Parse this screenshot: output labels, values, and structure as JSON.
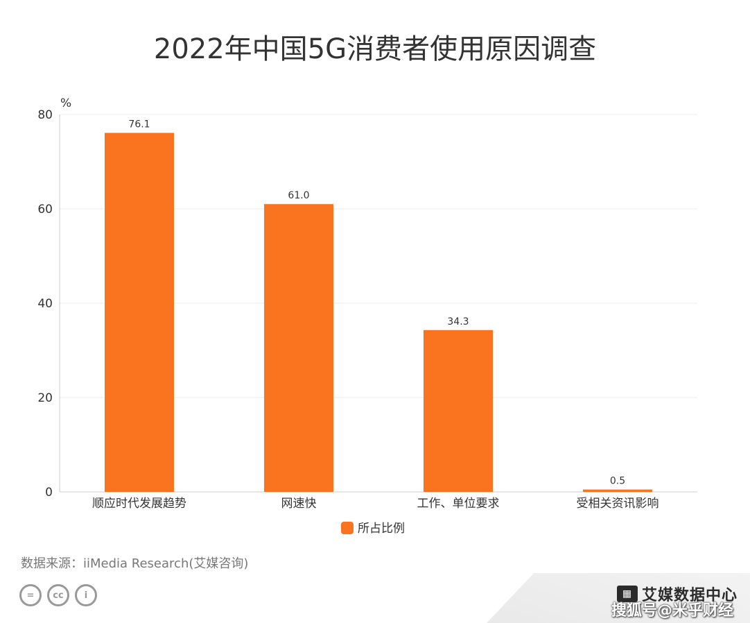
{
  "title": "2022年中国5G消费者使用原因调查",
  "source": "数据来源：iiMedia Research(艾媒咨询)",
  "brand": "艾媒数据中心",
  "watermark": "搜狐号@米乎财经",
  "cc_icons": [
    "equals-icon",
    "cc-icon",
    "person-icon"
  ],
  "colors": {
    "bar": "#FA731E",
    "grid": "#EBEBEB",
    "axis": "#CCCCCC",
    "text": "#333333"
  },
  "chart_data": {
    "type": "bar",
    "categories": [
      "顺应时代发展趋势",
      "网速快",
      "工作、单位要求",
      "受相关资讯影响"
    ],
    "series": [
      {
        "name": "所占比例",
        "values": [
          76.1,
          61.0,
          34.3,
          0.5
        ],
        "labels": [
          "76.1",
          "61.0",
          "34.3",
          "0.5"
        ]
      }
    ],
    "y_unit": "%",
    "ylim": [
      0,
      80
    ],
    "yticks": [
      0,
      20,
      40,
      60,
      80
    ],
    "grid": true,
    "legend_position": "bottom"
  }
}
